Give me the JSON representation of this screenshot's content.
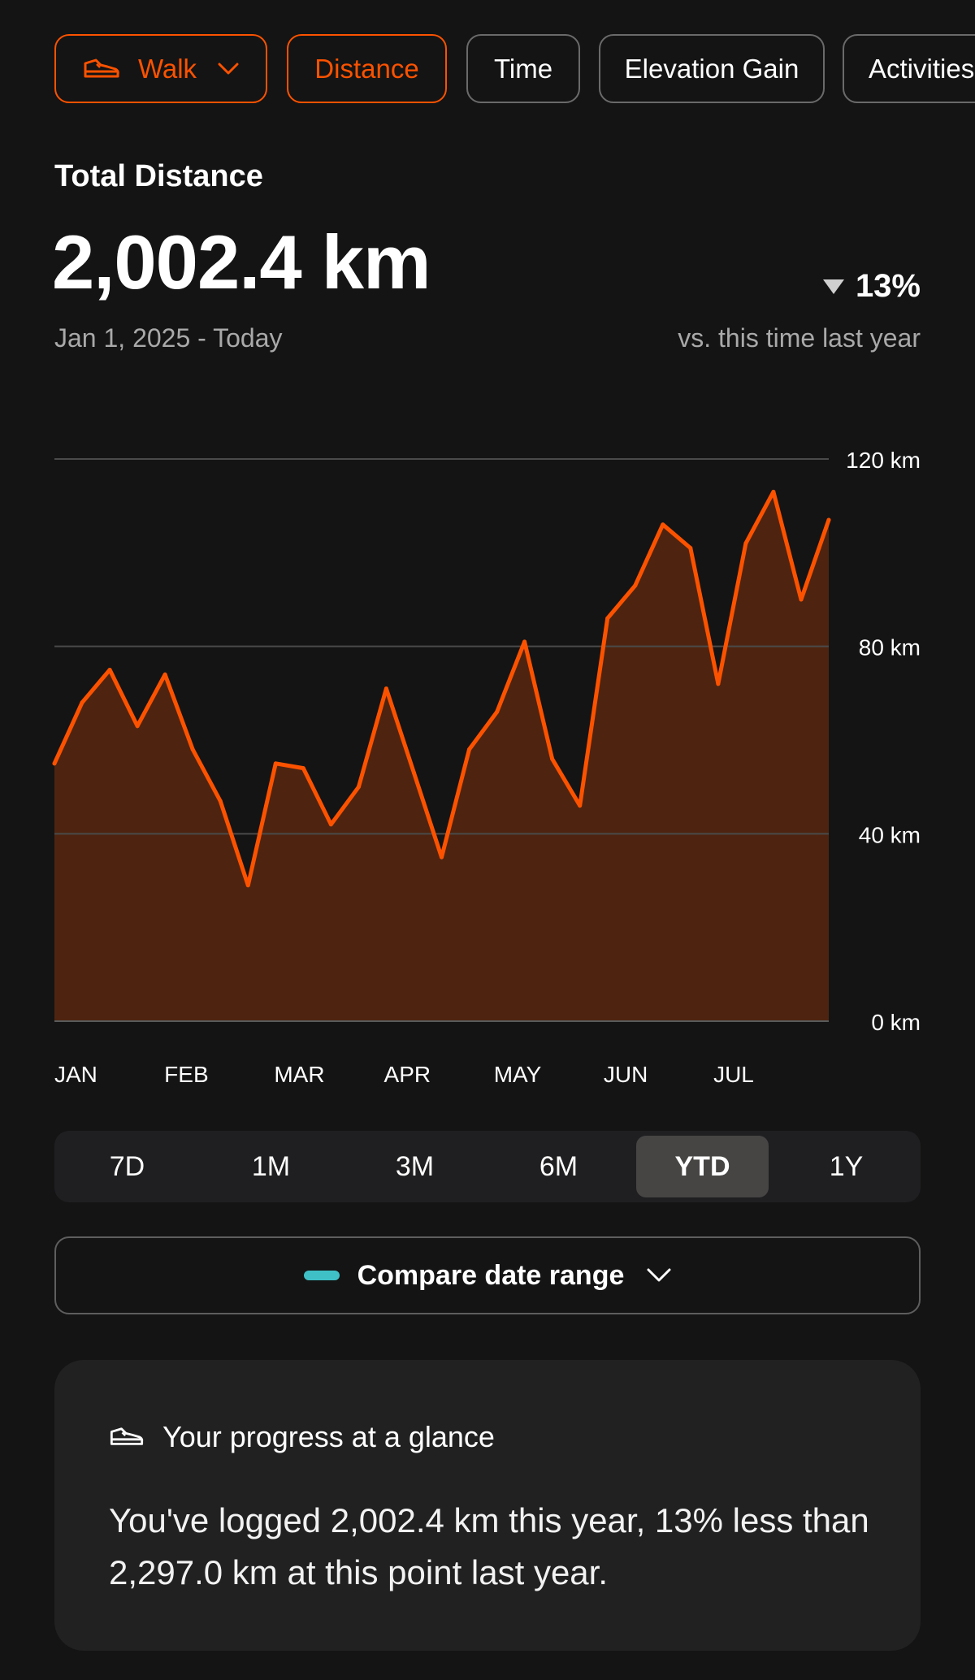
{
  "colors": {
    "accent": "#fc5200",
    "area_fill": "#4e2410",
    "compare_swatch": "#3fc0c7",
    "background": "#141414"
  },
  "filters": {
    "sport": {
      "label": "Walk",
      "icon": "shoe-icon",
      "dropdown_icon": "chevron-down-icon",
      "selected": true
    },
    "metrics": [
      {
        "label": "Distance",
        "selected": true
      },
      {
        "label": "Time",
        "selected": false
      },
      {
        "label": "Elevation Gain",
        "selected": false
      },
      {
        "label": "Activities",
        "selected": false
      }
    ]
  },
  "summary": {
    "label": "Total Distance",
    "value": "2,002.4 km",
    "date_range": "Jan 1, 2025 - Today",
    "change": "13%",
    "change_direction": "down",
    "change_caption": "vs. this time last year"
  },
  "chart_data": {
    "type": "area",
    "x_labels": [
      "JAN",
      "FEB",
      "MAR",
      "APR",
      "MAY",
      "JUN",
      "JUL"
    ],
    "y_ticks": [
      "120 km",
      "80 km",
      "40 km",
      "0 km"
    ],
    "y_tick_values": [
      120,
      80,
      40,
      0
    ],
    "ylim": [
      0,
      120
    ],
    "grid": true,
    "unit": "km",
    "values": [
      55,
      68,
      75,
      63,
      74,
      58,
      47,
      29,
      55,
      54,
      42,
      50,
      71,
      53,
      35,
      58,
      66,
      81,
      56,
      46,
      86,
      93,
      106,
      101,
      72,
      102,
      113,
      90,
      107
    ]
  },
  "periods": {
    "options": [
      "7D",
      "1M",
      "3M",
      "6M",
      "YTD",
      "1Y"
    ],
    "selected": "YTD"
  },
  "compare": {
    "label": "Compare date range",
    "dropdown_icon": "chevron-down-icon"
  },
  "progress": {
    "icon": "shoe-icon",
    "title": "Your progress at a glance",
    "body": "You've logged 2,002.4 km this year, 13% less than 2,297.0 km at this point last year."
  }
}
